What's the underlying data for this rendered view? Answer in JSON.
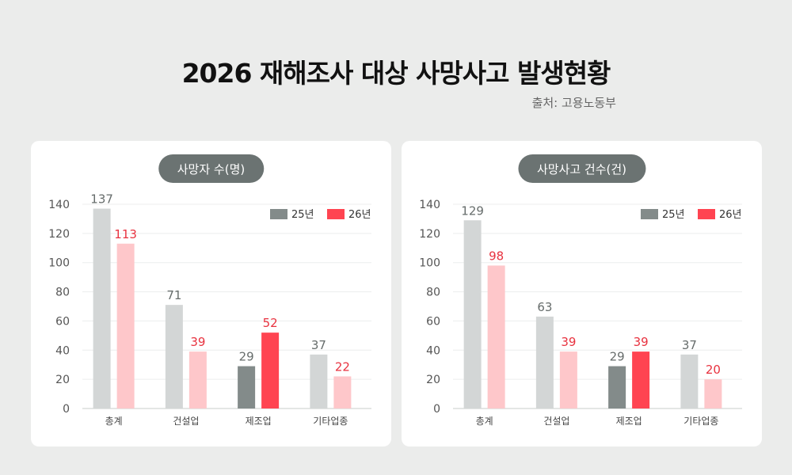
{
  "title": "2026 재해조사 대상 사망사고 발생현황",
  "source": "출처: 고용노동부",
  "colors": {
    "y25": "#d3d6d6",
    "y26": "#fec7ca",
    "y25_highlight": "#838b8a",
    "y26_highlight": "#ff4451",
    "y25_label": "#666c6b",
    "y26_label": "#e8323f",
    "legend_25": "#838b8a",
    "legend_26": "#ff4451"
  },
  "chart_data": [
    {
      "type": "bar",
      "title": "사망자 수(명)",
      "categories": [
        "총계",
        "건설업",
        "제조업",
        "기타업종"
      ],
      "highlight_category": "제조업",
      "series": [
        {
          "name": "25년",
          "values": [
            137,
            71,
            29,
            37
          ]
        },
        {
          "name": "26년",
          "values": [
            113,
            39,
            52,
            22
          ]
        }
      ],
      "ylim": [
        0,
        140
      ],
      "yticks": [
        0,
        20,
        40,
        60,
        80,
        100,
        120,
        140
      ],
      "grid": true,
      "legend": "top-right"
    },
    {
      "type": "bar",
      "title": "사망사고 건수(건)",
      "categories": [
        "총계",
        "건설업",
        "제조업",
        "기타업종"
      ],
      "highlight_category": "제조업",
      "series": [
        {
          "name": "25년",
          "values": [
            129,
            63,
            29,
            37
          ]
        },
        {
          "name": "26년",
          "values": [
            98,
            39,
            39,
            20
          ]
        }
      ],
      "ylim": [
        0,
        140
      ],
      "yticks": [
        0,
        20,
        40,
        60,
        80,
        100,
        120,
        140
      ],
      "grid": true,
      "legend": "top-right"
    }
  ]
}
